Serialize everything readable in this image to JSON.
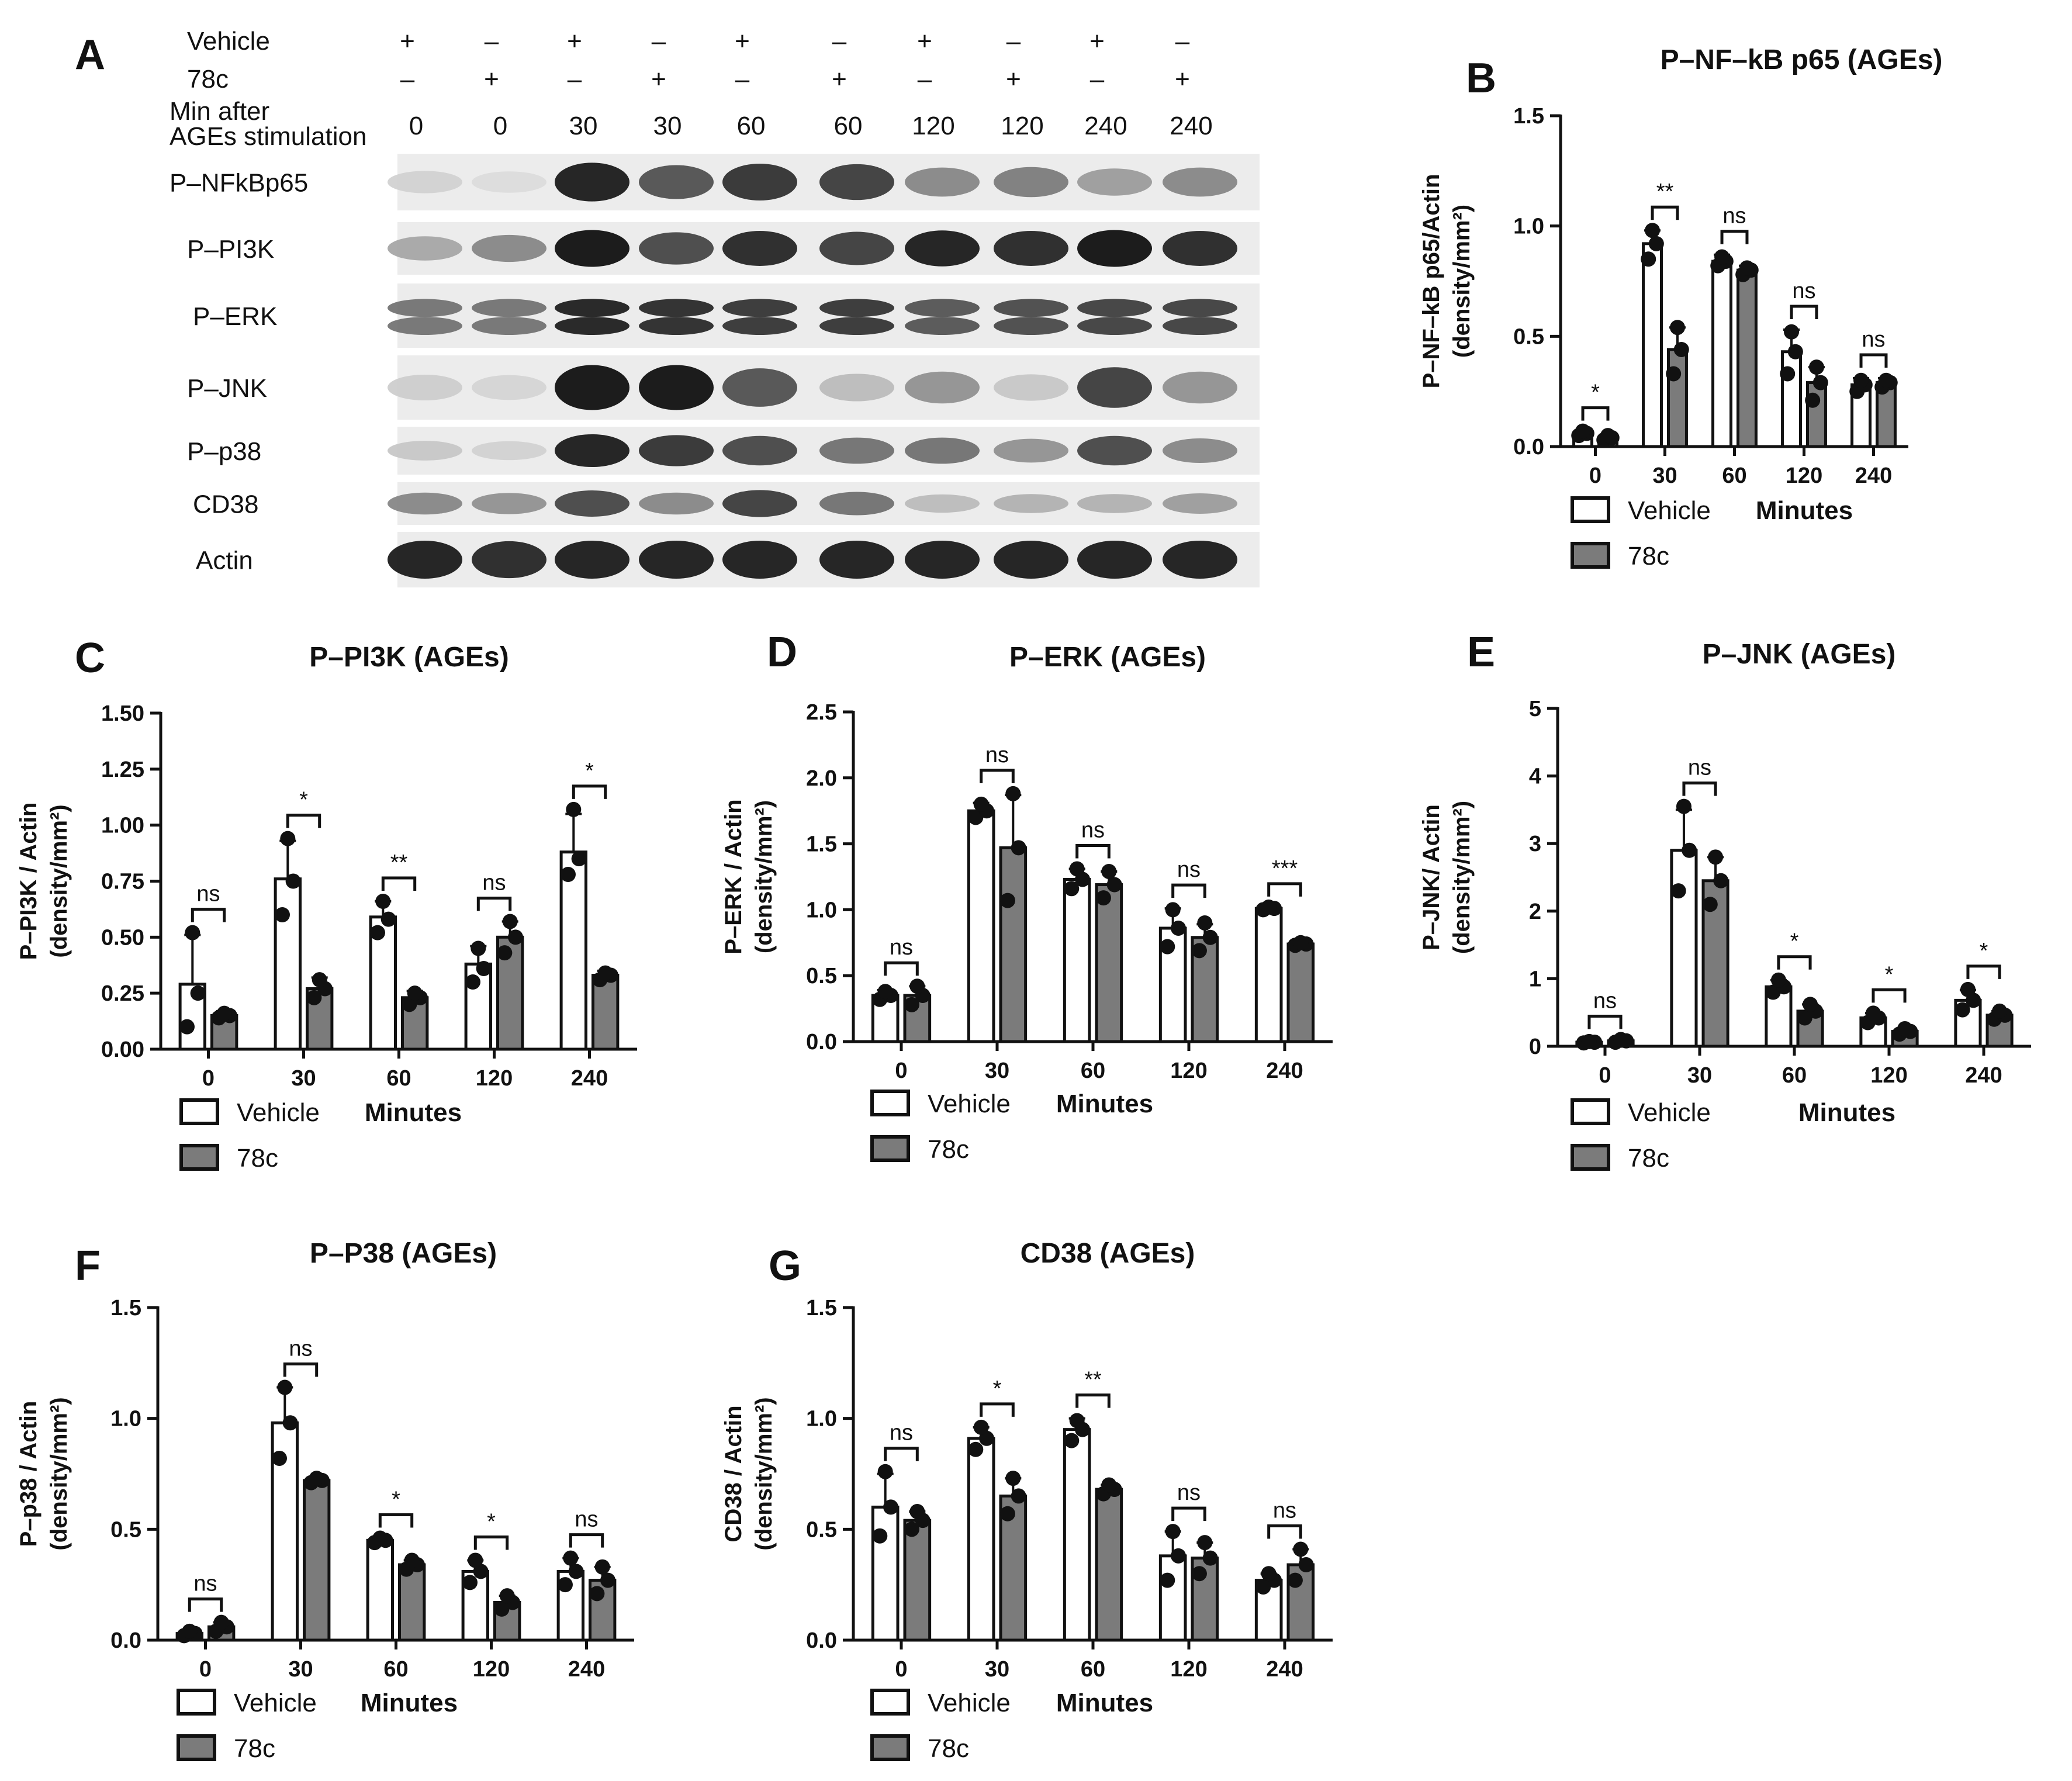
{
  "colors": {
    "vehicle": "#ffffff",
    "drug": "#7b7b7b",
    "stroke": "#111111",
    "dot": "#111111"
  },
  "panelA": {
    "label": "A",
    "rows": [
      {
        "label": "Vehicle",
        "values": [
          "+",
          "–",
          "+",
          "–",
          "+",
          "–",
          "+",
          "–",
          "+",
          "–"
        ]
      },
      {
        "label": "78c",
        "values": [
          "–",
          "+",
          "–",
          "+",
          "–",
          "+",
          "–",
          "+",
          "–",
          "+"
        ]
      }
    ],
    "time_label_1": "Min after",
    "time_label_2": "AGEs stimulation",
    "times": [
      "0",
      "0",
      "30",
      "30",
      "60",
      "60",
      "120",
      "120",
      "240",
      "240"
    ],
    "bands": [
      "P–NFkBp65",
      "P–PI3K",
      "P–ERK",
      "P–JNK",
      "P–p38",
      "CD38",
      "Actin"
    ],
    "intensity": [
      [
        0.1,
        0.05,
        0.95,
        0.7,
        0.85,
        0.8,
        0.45,
        0.5,
        0.35,
        0.45
      ],
      [
        0.3,
        0.45,
        1.0,
        0.75,
        0.9,
        0.8,
        0.95,
        0.9,
        1.0,
        0.9
      ],
      [
        0.55,
        0.55,
        0.95,
        0.9,
        0.85,
        0.85,
        0.7,
        0.75,
        0.8,
        0.8
      ],
      [
        0.12,
        0.08,
        1.0,
        1.0,
        0.7,
        0.2,
        0.4,
        0.15,
        0.8,
        0.4
      ],
      [
        0.15,
        0.1,
        0.95,
        0.85,
        0.75,
        0.55,
        0.55,
        0.4,
        0.75,
        0.45
      ],
      [
        0.45,
        0.4,
        0.75,
        0.45,
        0.8,
        0.55,
        0.2,
        0.25,
        0.25,
        0.35
      ],
      [
        0.95,
        0.9,
        0.95,
        0.95,
        0.95,
        0.95,
        0.95,
        0.95,
        0.95,
        0.95
      ]
    ]
  },
  "chart_data": [
    {
      "panel": "B",
      "type": "bar",
      "title": "P–NF–kB p65 (AGEs)",
      "ylabel_line1": "P–NF–kB p65/Actin",
      "ylabel_line2": "(density/mm²)",
      "xlabel": "Minutes",
      "categories": [
        "0",
        "30",
        "60",
        "120",
        "240"
      ],
      "yticks": [
        "0.0",
        "0.5",
        "1.0",
        "1.5"
      ],
      "ylim": [
        0,
        1.5
      ],
      "series": [
        {
          "name": "Vehicle",
          "values": [
            0.06,
            0.92,
            0.84,
            0.43,
            0.28
          ],
          "errors": [
            0.01,
            0.06,
            0.03,
            0.1,
            0.03
          ],
          "points": [
            [
              0.05,
              0.06,
              0.07
            ],
            [
              0.85,
              0.92,
              0.98
            ],
            [
              0.82,
              0.84,
              0.86
            ],
            [
              0.33,
              0.43,
              0.52
            ],
            [
              0.25,
              0.28,
              0.3
            ]
          ]
        },
        {
          "name": "78c",
          "values": [
            0.04,
            0.44,
            0.8,
            0.29,
            0.29
          ],
          "errors": [
            0.01,
            0.1,
            0.02,
            0.07,
            0.02
          ],
          "points": [
            [
              0.03,
              0.04,
              0.05
            ],
            [
              0.33,
              0.44,
              0.54
            ],
            [
              0.78,
              0.8,
              0.81
            ],
            [
              0.21,
              0.29,
              0.36
            ],
            [
              0.27,
              0.29,
              0.3
            ]
          ]
        }
      ],
      "significance": [
        "*",
        "**",
        "ns",
        "ns",
        "ns"
      ]
    },
    {
      "panel": "C",
      "type": "bar",
      "title": "P–PI3K (AGEs)",
      "ylabel_line1": "P–PI3K / Actin",
      "ylabel_line2": "(density/mm²)",
      "xlabel": "Minutes",
      "categories": [
        "0",
        "30",
        "60",
        "120",
        "240"
      ],
      "yticks": [
        "0.00",
        "0.25",
        "0.50",
        "0.75",
        "1.00",
        "1.25",
        "1.50"
      ],
      "ylim": [
        0,
        1.5
      ],
      "series": [
        {
          "name": "Vehicle",
          "values": [
            0.29,
            0.76,
            0.59,
            0.38,
            0.88
          ],
          "errors": [
            0.22,
            0.17,
            0.07,
            0.08,
            0.17
          ],
          "points": [
            [
              0.1,
              0.25,
              0.52
            ],
            [
              0.6,
              0.75,
              0.94
            ],
            [
              0.52,
              0.58,
              0.66
            ],
            [
              0.3,
              0.36,
              0.45
            ],
            [
              0.78,
              0.85,
              1.07
            ]
          ]
        },
        {
          "name": "78c",
          "values": [
            0.15,
            0.27,
            0.23,
            0.5,
            0.33
          ],
          "errors": [
            0.02,
            0.05,
            0.03,
            0.07,
            0.02
          ],
          "points": [
            [
              0.14,
              0.15,
              0.16
            ],
            [
              0.23,
              0.27,
              0.31
            ],
            [
              0.2,
              0.23,
              0.25
            ],
            [
              0.43,
              0.5,
              0.57
            ],
            [
              0.31,
              0.33,
              0.34
            ]
          ]
        }
      ],
      "significance": [
        "ns",
        "*",
        "**",
        "ns",
        "*"
      ]
    },
    {
      "panel": "D",
      "type": "bar",
      "title": "P–ERK (AGEs)",
      "ylabel_line1": "P–ERK / Actin",
      "ylabel_line2": "(density/mm²)",
      "xlabel": "Minutes",
      "categories": [
        "0",
        "30",
        "60",
        "120",
        "240"
      ],
      "yticks": [
        "0.0",
        "0.5",
        "1.0",
        "1.5",
        "2.0",
        "2.5"
      ],
      "ylim": [
        0,
        2.5
      ],
      "series": [
        {
          "name": "Vehicle",
          "values": [
            0.35,
            1.75,
            1.23,
            0.86,
            1.01
          ],
          "errors": [
            0.04,
            0.06,
            0.08,
            0.15,
            0.01
          ],
          "points": [
            [
              0.32,
              0.35,
              0.38
            ],
            [
              1.7,
              1.75,
              1.8
            ],
            [
              1.16,
              1.23,
              1.31
            ],
            [
              0.72,
              0.86,
              1.0
            ],
            [
              1.0,
              1.01,
              1.02
            ]
          ]
        },
        {
          "name": "78c",
          "values": [
            0.35,
            1.47,
            1.19,
            0.79,
            0.74
          ],
          "errors": [
            0.07,
            0.4,
            0.1,
            0.1,
            0.01
          ],
          "points": [
            [
              0.28,
              0.35,
              0.42
            ],
            [
              1.07,
              1.47,
              1.88
            ],
            [
              1.09,
              1.19,
              1.29
            ],
            [
              0.69,
              0.79,
              0.9
            ],
            [
              0.73,
              0.74,
              0.75
            ]
          ]
        }
      ],
      "significance": [
        "ns",
        "ns",
        "ns",
        "ns",
        "***"
      ]
    },
    {
      "panel": "E",
      "type": "bar",
      "title": "P–JNK (AGEs)",
      "ylabel_line1": "P–JNK/ Actin",
      "ylabel_line2": "(density/mm²)",
      "xlabel": "Minutes",
      "categories": [
        "0",
        "30",
        "60",
        "120",
        "240"
      ],
      "yticks": [
        "0",
        "1",
        "2",
        "3",
        "4",
        "5"
      ],
      "ylim": [
        0,
        5
      ],
      "series": [
        {
          "name": "Vehicle",
          "values": [
            0.06,
            2.9,
            0.88,
            0.42,
            0.68
          ],
          "errors": [
            0.01,
            0.6,
            0.1,
            0.07,
            0.15
          ],
          "points": [
            [
              0.05,
              0.06,
              0.07
            ],
            [
              2.3,
              2.9,
              3.55
            ],
            [
              0.8,
              0.88,
              0.98
            ],
            [
              0.35,
              0.42,
              0.49
            ],
            [
              0.54,
              0.68,
              0.84
            ]
          ]
        },
        {
          "name": "78c",
          "values": [
            0.08,
            2.45,
            0.52,
            0.22,
            0.46
          ],
          "errors": [
            0.02,
            0.35,
            0.1,
            0.04,
            0.06
          ],
          "points": [
            [
              0.06,
              0.08,
              0.1
            ],
            [
              2.1,
              2.45,
              2.8
            ],
            [
              0.42,
              0.52,
              0.62
            ],
            [
              0.18,
              0.22,
              0.26
            ],
            [
              0.4,
              0.46,
              0.52
            ]
          ]
        }
      ],
      "significance": [
        "ns",
        "ns",
        "*",
        "*",
        "*"
      ]
    },
    {
      "panel": "F",
      "type": "bar",
      "title": "P–P38 (AGEs)",
      "ylabel_line1": "P–p38 / Actin",
      "ylabel_line2": "(density/mm²)",
      "xlabel": "Minutes",
      "categories": [
        "0",
        "30",
        "60",
        "120",
        "240"
      ],
      "yticks": [
        "0.0",
        "0.5",
        "1.0",
        "1.5"
      ],
      "ylim": [
        0,
        1.5
      ],
      "series": [
        {
          "name": "Vehicle",
          "values": [
            0.03,
            0.98,
            0.45,
            0.31,
            0.31
          ],
          "errors": [
            0.01,
            0.16,
            0.01,
            0.05,
            0.06
          ],
          "points": [
            [
              0.02,
              0.03,
              0.04
            ],
            [
              0.82,
              0.98,
              1.14
            ],
            [
              0.44,
              0.45,
              0.46
            ],
            [
              0.26,
              0.31,
              0.36
            ],
            [
              0.25,
              0.31,
              0.37
            ]
          ]
        },
        {
          "name": "78c",
          "values": [
            0.06,
            0.72,
            0.34,
            0.17,
            0.27
          ],
          "errors": [
            0.02,
            0.01,
            0.02,
            0.03,
            0.06
          ],
          "points": [
            [
              0.04,
              0.06,
              0.08
            ],
            [
              0.71,
              0.72,
              0.73
            ],
            [
              0.32,
              0.34,
              0.36
            ],
            [
              0.14,
              0.17,
              0.2
            ],
            [
              0.21,
              0.27,
              0.33
            ]
          ]
        }
      ],
      "significance": [
        "ns",
        "ns",
        "*",
        "*",
        "ns"
      ]
    },
    {
      "panel": "G",
      "type": "bar",
      "title": "CD38 (AGEs)",
      "ylabel_line1": "CD38 / Actin",
      "ylabel_line2": "(density/mm²)",
      "xlabel": "Minutes",
      "categories": [
        "0",
        "30",
        "60",
        "120",
        "240"
      ],
      "yticks": [
        "0.0",
        "0.5",
        "1.0",
        "1.5"
      ],
      "ylim": [
        0,
        1.5
      ],
      "series": [
        {
          "name": "Vehicle",
          "values": [
            0.6,
            0.91,
            0.95,
            0.38,
            0.27
          ],
          "errors": [
            0.15,
            0.05,
            0.05,
            0.11,
            0.03
          ],
          "points": [
            [
              0.47,
              0.6,
              0.76
            ],
            [
              0.86,
              0.91,
              0.96
            ],
            [
              0.9,
              0.95,
              0.99
            ],
            [
              0.27,
              0.38,
              0.49
            ],
            [
              0.24,
              0.27,
              0.3
            ]
          ]
        },
        {
          "name": "78c",
          "values": [
            0.54,
            0.65,
            0.68,
            0.37,
            0.34
          ],
          "errors": [
            0.04,
            0.08,
            0.02,
            0.07,
            0.07
          ],
          "points": [
            [
              0.5,
              0.54,
              0.58
            ],
            [
              0.57,
              0.65,
              0.73
            ],
            [
              0.66,
              0.68,
              0.7
            ],
            [
              0.3,
              0.37,
              0.44
            ],
            [
              0.27,
              0.34,
              0.41
            ]
          ]
        }
      ],
      "significance": [
        "ns",
        "*",
        "**",
        "ns",
        "ns"
      ]
    }
  ]
}
